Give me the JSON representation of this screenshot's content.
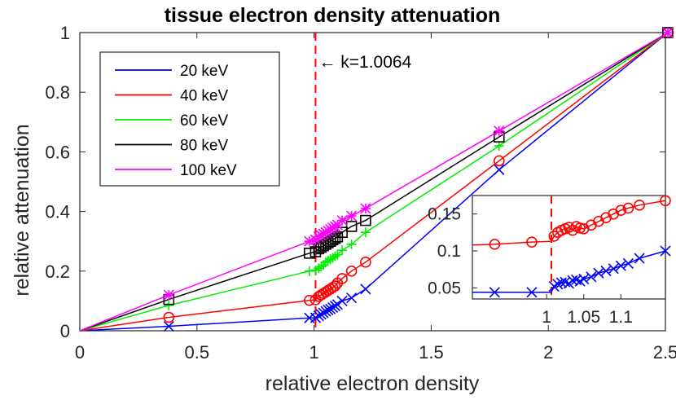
{
  "chart_data": [
    {
      "type": "line",
      "title": "tissue electron density attenuation",
      "xlabel": "relative electron density",
      "ylabel": "relative attenuation",
      "xlim": [
        0,
        2.5
      ],
      "ylim": [
        0,
        1
      ],
      "x_ticks": [
        "0",
        "0.5",
        "1",
        "1.5",
        "2",
        "2.5"
      ],
      "y_ticks": [
        "0",
        "0.2",
        "0.4",
        "0.6",
        "0.8",
        "1"
      ],
      "grid": false,
      "legend_position": "top-left",
      "annotation": {
        "text": "← k=1.0064",
        "x": 1.0064
      },
      "x": [
        0,
        0.38,
        0.98,
        1.0064,
        1.02,
        1.03,
        1.04,
        1.05,
        1.06,
        1.07,
        1.08,
        1.09,
        1.1,
        1.12,
        1.16,
        1.22,
        1.79,
        2.51
      ],
      "series": [
        {
          "name": "20 keV",
          "color": "#0000ff",
          "marker": "x",
          "values": [
            0,
            0.015,
            0.043,
            0.044,
            0.05,
            0.055,
            0.06,
            0.065,
            0.07,
            0.073,
            0.078,
            0.083,
            0.088,
            0.1,
            0.11,
            0.14,
            0.54,
            1
          ]
        },
        {
          "name": "40 keV",
          "color": "#ff0000",
          "marker": "o",
          "values": [
            0,
            0.045,
            0.102,
            0.104,
            0.115,
            0.12,
            0.125,
            0.13,
            0.135,
            0.14,
            0.145,
            0.15,
            0.16,
            0.175,
            0.2,
            0.23,
            0.57,
            1
          ]
        },
        {
          "name": "60 keV",
          "color": "#00ee00",
          "marker": "+",
          "values": [
            0,
            0.085,
            0.2,
            0.203,
            0.21,
            0.215,
            0.22,
            0.23,
            0.235,
            0.24,
            0.245,
            0.25,
            0.255,
            0.27,
            0.29,
            0.33,
            0.62,
            1
          ]
        },
        {
          "name": "80 keV",
          "color": "#000000",
          "marker": "s",
          "values": [
            0,
            0.105,
            0.26,
            0.265,
            0.275,
            0.28,
            0.285,
            0.29,
            0.295,
            0.3,
            0.305,
            0.31,
            0.315,
            0.33,
            0.35,
            0.37,
            0.65,
            1
          ]
        },
        {
          "name": "100 keV",
          "color": "#ff00ff",
          "marker": "*",
          "values": [
            0,
            0.12,
            0.3,
            0.305,
            0.315,
            0.32,
            0.325,
            0.33,
            0.335,
            0.34,
            0.345,
            0.35,
            0.355,
            0.37,
            0.385,
            0.41,
            0.67,
            1
          ]
        }
      ]
    },
    {
      "type": "line",
      "title": "",
      "xlabel": "",
      "ylabel": "",
      "xlim": [
        0.9,
        1.16
      ],
      "ylim": [
        0.035,
        0.175
      ],
      "x_ticks": [
        "1",
        "1.05",
        "1.1"
      ],
      "y_ticks": [
        "0.05",
        "0.1",
        "0.15"
      ],
      "vline_x": 1.0064,
      "x": [
        0.9,
        0.93,
        0.98,
        1.0064,
        1.01,
        1.015,
        1.02,
        1.025,
        1.03,
        1.035,
        1.04,
        1.045,
        1.05,
        1.06,
        1.07,
        1.08,
        1.09,
        1.1,
        1.11,
        1.125,
        1.16
      ],
      "series": [
        {
          "name": "40 keV",
          "color": "#ff0000",
          "marker": "o",
          "values": [
            0.108,
            0.109,
            0.112,
            0.113,
            0.12,
            0.125,
            0.128,
            0.13,
            0.132,
            0.128,
            0.133,
            0.131,
            0.13,
            0.135,
            0.14,
            0.145,
            0.15,
            0.155,
            0.158,
            0.162,
            0.168
          ]
        },
        {
          "name": "20 keV",
          "color": "#0000ff",
          "marker": "x",
          "values": [
            0.044,
            0.044,
            0.044,
            0.044,
            0.052,
            0.055,
            0.057,
            0.058,
            0.056,
            0.06,
            0.061,
            0.059,
            0.062,
            0.065,
            0.07,
            0.073,
            0.076,
            0.08,
            0.083,
            0.09,
            0.1
          ]
        }
      ]
    }
  ]
}
